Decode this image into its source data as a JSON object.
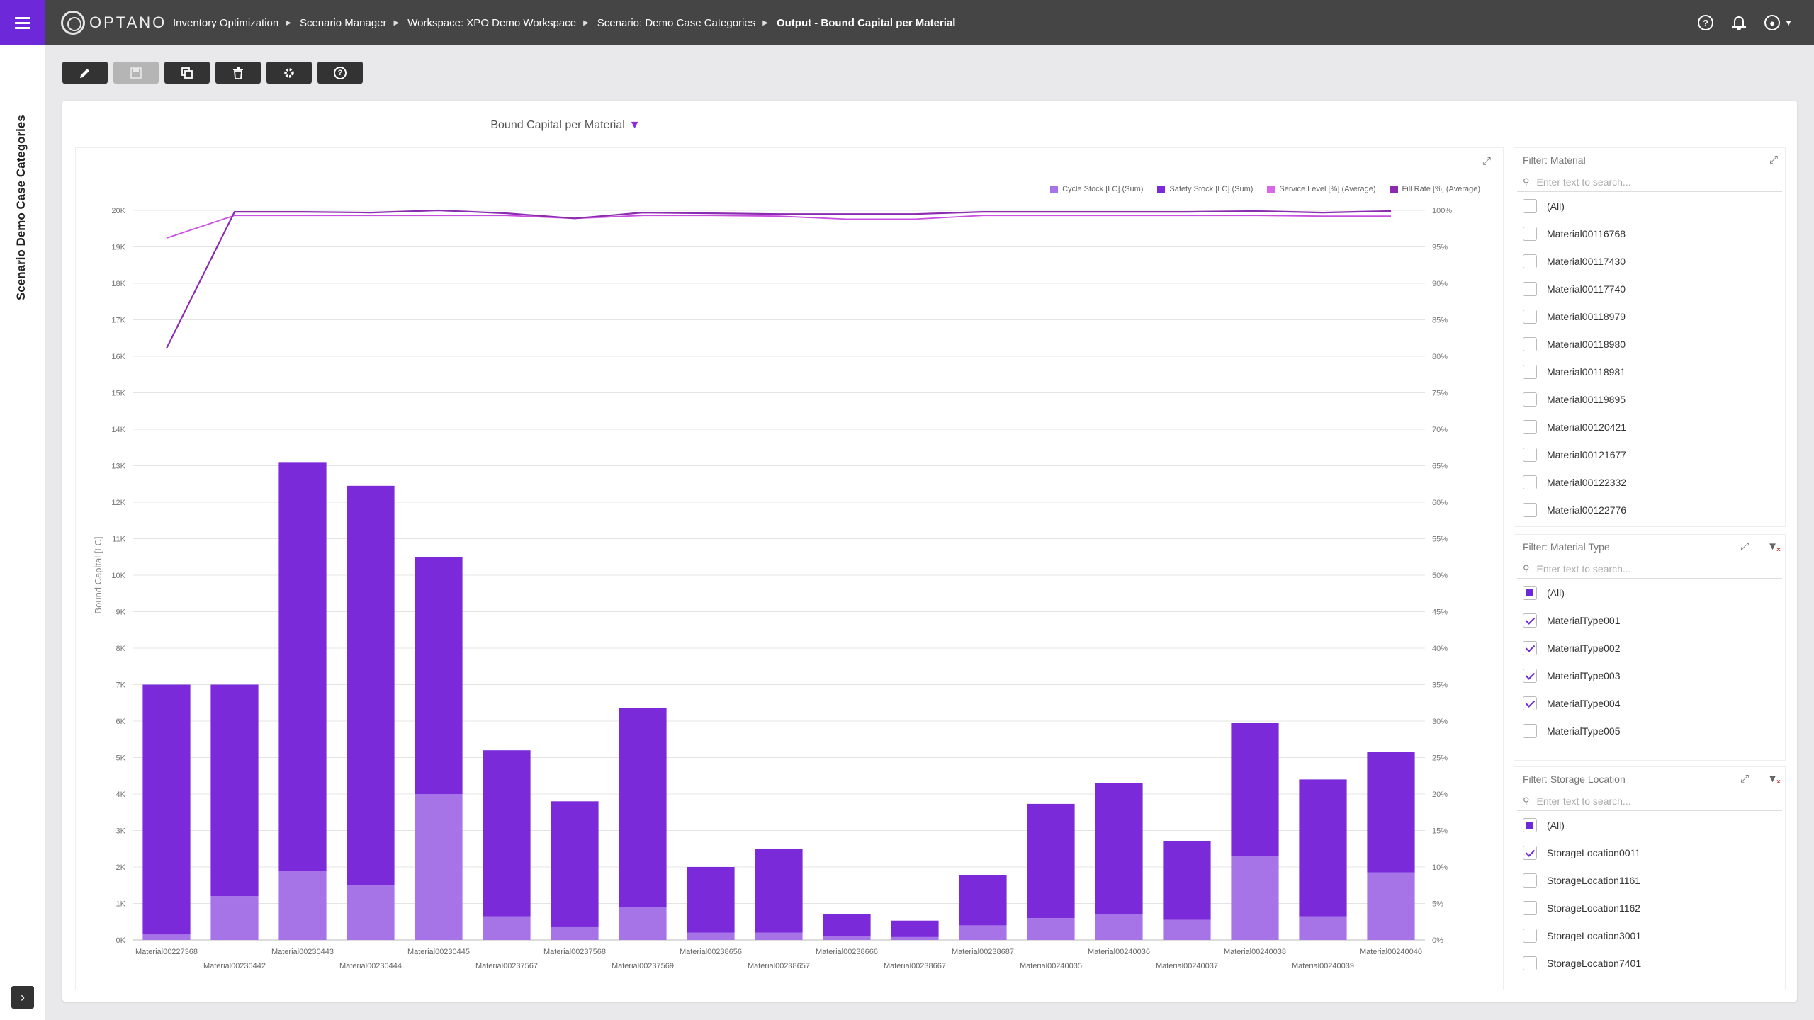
{
  "app": {
    "logo_text": "OPTANO",
    "breadcrumb": [
      {
        "label": "Inventory Optimization"
      },
      {
        "label": "Scenario Manager"
      },
      {
        "label": "Workspace: XPO Demo Workspace"
      },
      {
        "label": "Scenario: Demo Case Categories"
      },
      {
        "label": "Output - Bound Capital per Material"
      }
    ],
    "side_title": "Scenario Demo Case Categories"
  },
  "toolbar": {
    "buttons": [
      {
        "name": "edit",
        "icon": "pencil-icon"
      },
      {
        "name": "save",
        "icon": "save-icon",
        "disabled": true
      },
      {
        "name": "copy",
        "icon": "copy-icon"
      },
      {
        "name": "delete",
        "icon": "trash-icon"
      },
      {
        "name": "settings",
        "icon": "gear-icon"
      },
      {
        "name": "help",
        "icon": "help-icon"
      }
    ]
  },
  "panel": {
    "title": "Bound Capital per Material"
  },
  "chart_data": {
    "type": "bar",
    "title": "Bound Capital per Material",
    "ylabel": "Bound Capital [LC]",
    "ylim": [
      0,
      20000
    ],
    "y_ticks": [
      "0K",
      "1K",
      "2K",
      "3K",
      "4K",
      "5K",
      "6K",
      "7K",
      "8K",
      "9K",
      "10K",
      "11K",
      "12K",
      "13K",
      "14K",
      "15K",
      "16K",
      "17K",
      "18K",
      "19K",
      "20K"
    ],
    "y2lim": [
      0,
      100
    ],
    "y2_ticks": [
      "0%",
      "5%",
      "10%",
      "15%",
      "20%",
      "25%",
      "30%",
      "35%",
      "40%",
      "45%",
      "50%",
      "55%",
      "60%",
      "65%",
      "70%",
      "75%",
      "80%",
      "85%",
      "90%",
      "95%",
      "100%"
    ],
    "grid": true,
    "legend_position": "top-right",
    "categories": [
      "Material00227368",
      "Material00230442",
      "Material00230443",
      "Material00230444",
      "Material00230445",
      "Material00237567",
      "Material00237568",
      "Material00237569",
      "Material00238656",
      "Material00238657",
      "Material00238666",
      "Material00238667",
      "Material00238687",
      "Material00240035",
      "Material00240036",
      "Material00240037",
      "Material00240038",
      "Material00240039",
      "Material00240040"
    ],
    "series": [
      {
        "name": "Cycle Stock [LC] (Sum)",
        "kind": "bar",
        "color": "#a774e8",
        "values": [
          150,
          1200,
          1900,
          1500,
          4000,
          650,
          350,
          900,
          200,
          200,
          100,
          80,
          400,
          600,
          700,
          550,
          2300,
          650,
          1850
        ]
      },
      {
        "name": "Safety Stock [LC] (Sum)",
        "kind": "bar",
        "color": "#7a2ad9",
        "values": [
          6850,
          5800,
          11200,
          10950,
          6500,
          4550,
          3450,
          5450,
          1800,
          2300,
          600,
          450,
          1370,
          3130,
          3600,
          2150,
          3650,
          3750,
          3300
        ]
      },
      {
        "name": "Service Level [%] (Average)",
        "kind": "line",
        "color": "#c94fe0",
        "values": [
          96.2,
          99.3,
          99.3,
          99.3,
          99.3,
          99.3,
          98.9,
          99.3,
          99.3,
          99.2,
          98.8,
          98.8,
          99.3,
          99.3,
          99.3,
          99.3,
          99.3,
          99.2,
          99.2
        ]
      },
      {
        "name": "Fill Rate [%] (Average)",
        "kind": "line",
        "color": "#8b2bb0",
        "values": [
          81.1,
          99.8,
          99.8,
          99.7,
          100.0,
          99.6,
          98.9,
          99.7,
          99.6,
          99.5,
          99.5,
          99.5,
          99.8,
          99.8,
          99.8,
          99.8,
          99.9,
          99.7,
          99.9
        ]
      }
    ]
  },
  "filters": {
    "material": {
      "title": "Filter: Material",
      "placeholder": "Enter text to search...",
      "items": [
        {
          "label": "(All)",
          "state": "none"
        },
        {
          "label": "Material00116768",
          "state": "none"
        },
        {
          "label": "Material00117430",
          "state": "none"
        },
        {
          "label": "Material00117740",
          "state": "none"
        },
        {
          "label": "Material00118979",
          "state": "none"
        },
        {
          "label": "Material00118980",
          "state": "none"
        },
        {
          "label": "Material00118981",
          "state": "none"
        },
        {
          "label": "Material00119895",
          "state": "none"
        },
        {
          "label": "Material00120421",
          "state": "none"
        },
        {
          "label": "Material00121677",
          "state": "none"
        },
        {
          "label": "Material00122332",
          "state": "none"
        },
        {
          "label": "Material00122776",
          "state": "none"
        }
      ]
    },
    "material_type": {
      "title": "Filter: Material Type",
      "placeholder": "Enter text to search...",
      "items": [
        {
          "label": "(All)",
          "state": "partial"
        },
        {
          "label": "MaterialType001",
          "state": "checked"
        },
        {
          "label": "MaterialType002",
          "state": "checked"
        },
        {
          "label": "MaterialType003",
          "state": "checked"
        },
        {
          "label": "MaterialType004",
          "state": "checked"
        },
        {
          "label": "MaterialType005",
          "state": "none"
        }
      ]
    },
    "storage_location": {
      "title": "Filter: Storage Location",
      "placeholder": "Enter text to search...",
      "items": [
        {
          "label": "(All)",
          "state": "partial"
        },
        {
          "label": "StorageLocation0011",
          "state": "checked"
        },
        {
          "label": "StorageLocation1161",
          "state": "none"
        },
        {
          "label": "StorageLocation1162",
          "state": "none"
        },
        {
          "label": "StorageLocation3001",
          "state": "none"
        },
        {
          "label": "StorageLocation7401",
          "state": "none"
        }
      ]
    }
  }
}
